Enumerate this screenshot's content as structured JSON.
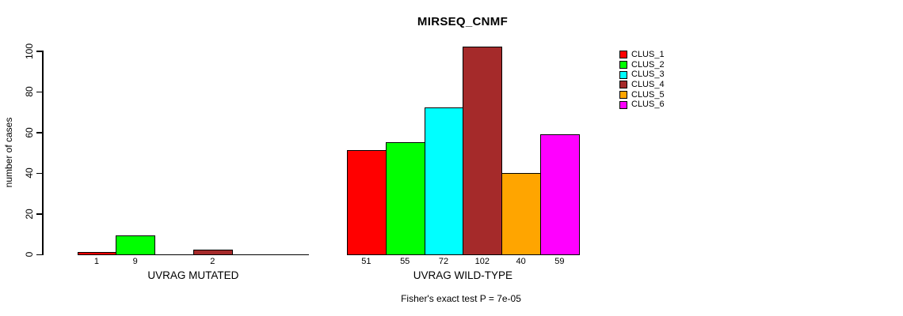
{
  "chart_data": {
    "type": "bar",
    "title": "MIRSEQ_CNMF",
    "ylabel": "number of cases",
    "xlabel": "",
    "ylim": [
      0,
      100
    ],
    "yticks": [
      0,
      20,
      40,
      60,
      80,
      100
    ],
    "grid": false,
    "legend_position": "top-right",
    "categories": [
      "UVRAG MUTATED",
      "UVRAG WILD-TYPE"
    ],
    "series": [
      {
        "name": "CLUS_1",
        "color": "#FF0000",
        "values": [
          1,
          51
        ]
      },
      {
        "name": "CLUS_2",
        "color": "#00FF00",
        "values": [
          9,
          55
        ]
      },
      {
        "name": "CLUS_3",
        "color": "#00FFFF",
        "values": [
          0,
          72
        ]
      },
      {
        "name": "CLUS_4",
        "color": "#A52A2A",
        "values": [
          2,
          102
        ]
      },
      {
        "name": "CLUS_5",
        "color": "#FFA500",
        "values": [
          0,
          40
        ]
      },
      {
        "name": "CLUS_6",
        "color": "#FF00FF",
        "values": [
          0,
          59
        ]
      }
    ],
    "bar_labels": [
      [
        "1",
        "9",
        "",
        "2",
        "",
        ""
      ],
      [
        "51",
        "55",
        "72",
        "102",
        "40",
        "59"
      ]
    ],
    "annotation": "Fisher's exact test P = 7e-05"
  }
}
